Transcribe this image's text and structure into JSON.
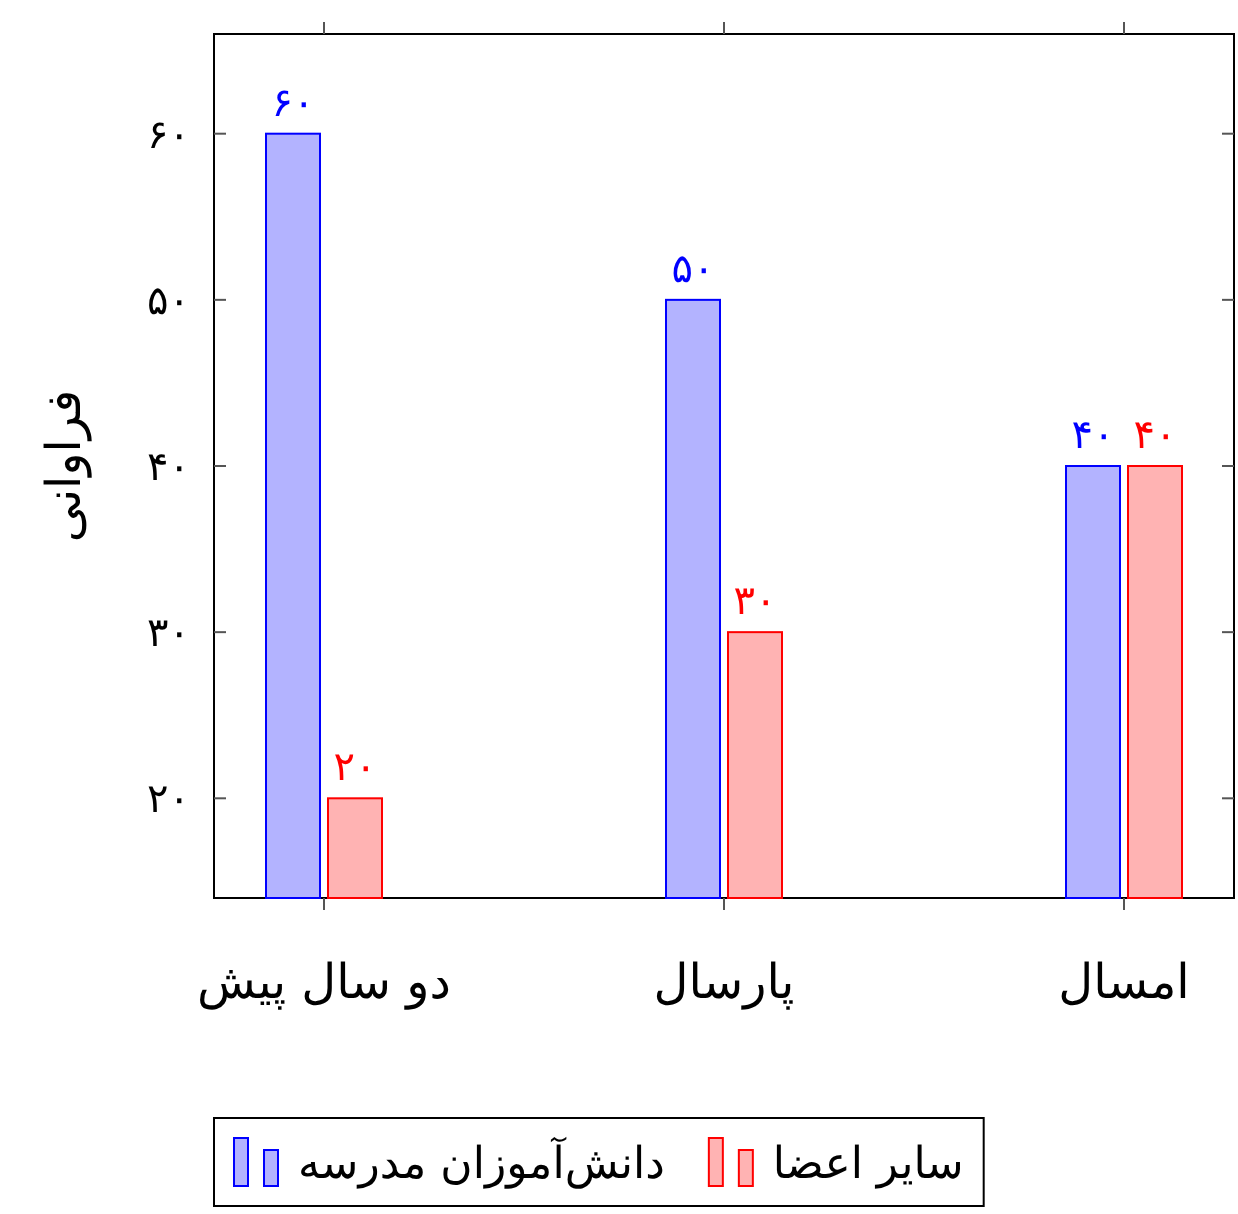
{
  "chart_data": {
    "type": "bar",
    "ylabel": "فراوانی",
    "categories": [
      "دو سال پیش",
      "پارسال",
      "امسال"
    ],
    "series": [
      {
        "name": "دانش‌آموزان مدرسه",
        "color": "#0000ff",
        "values": [
          60,
          50,
          40
        ],
        "value_labels": [
          "۶۰",
          "۵۰",
          "۴۰"
        ]
      },
      {
        "name": "سایر اعضا",
        "color": "#ff0000",
        "values": [
          20,
          30,
          40
        ],
        "value_labels": [
          "۲۰",
          "۳۰",
          "۴۰"
        ]
      }
    ],
    "ylim": [
      14,
      66
    ],
    "yticks": [
      {
        "value": 20,
        "label": "۲۰"
      },
      {
        "value": 30,
        "label": "۳۰"
      },
      {
        "value": 40,
        "label": "۴۰"
      },
      {
        "value": 50,
        "label": "۵۰"
      },
      {
        "value": 60,
        "label": "۶۰"
      }
    ],
    "legend": "bottom",
    "grid": false
  }
}
